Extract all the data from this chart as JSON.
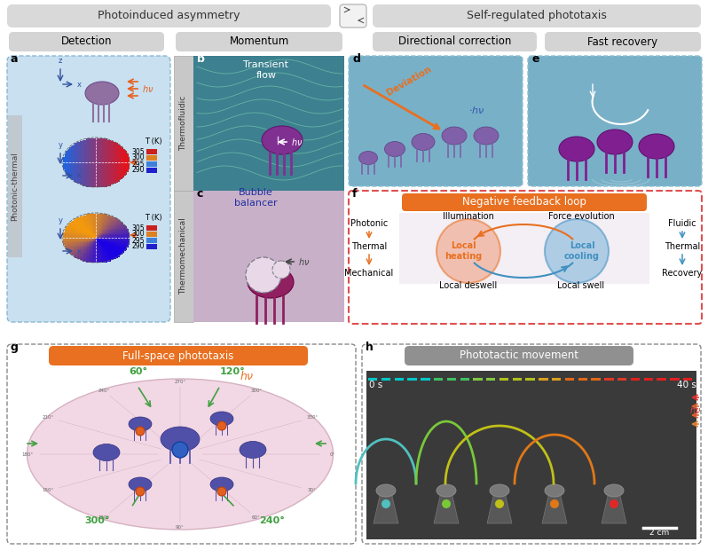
{
  "bg_color": "#ffffff",
  "top_bar_color": "#d9d9d9",
  "sub_bar_color": "#d4d4d4",
  "panel_a_bg": "#c8e0f0",
  "orange_color": "#e87020",
  "blue_color": "#4090c0",
  "green_color": "#40a040",
  "title_top_left": "Photoinduced asymmetry",
  "title_top_right": "Self-regulated phototaxis",
  "sub_detection": "Detection",
  "sub_momentum": "Momentum",
  "sub_directional": "Directional correction",
  "sub_fast": "Fast recovery",
  "label_a": "a",
  "label_b": "b",
  "label_c": "c",
  "label_d": "d",
  "label_e": "e",
  "label_f": "f",
  "label_g": "g",
  "label_h": "h",
  "panel_b_title": "Transient\nflow",
  "panel_c_title": "Bubble\nbalancer",
  "panel_f_title": "Negative feedback loop",
  "panel_g_title": "Full-space phototaxis",
  "panel_h_title": "Phototactic movement",
  "thermo_fluidic": "Thermofluidic",
  "thermo_mechanical": "Thermomechanical",
  "photonic_thermal": "Photonic-thermal",
  "f_illumination": "Illumination",
  "f_force": "Force evolution",
  "f_local_heating": "Local\nheating",
  "f_local_cooling": "Local\ncooling",
  "f_local_deswell": "Local deswell",
  "f_local_swell": "Local swell",
  "orange_arrow_color": "#e86020",
  "red_dashed_color": "#e05050",
  "T_values": [
    305,
    300,
    295,
    290
  ],
  "colorbar_colors": [
    "#cc2020",
    "#dd8020",
    "#4080dd",
    "#2020cc"
  ],
  "deviation_text": "Deviation"
}
